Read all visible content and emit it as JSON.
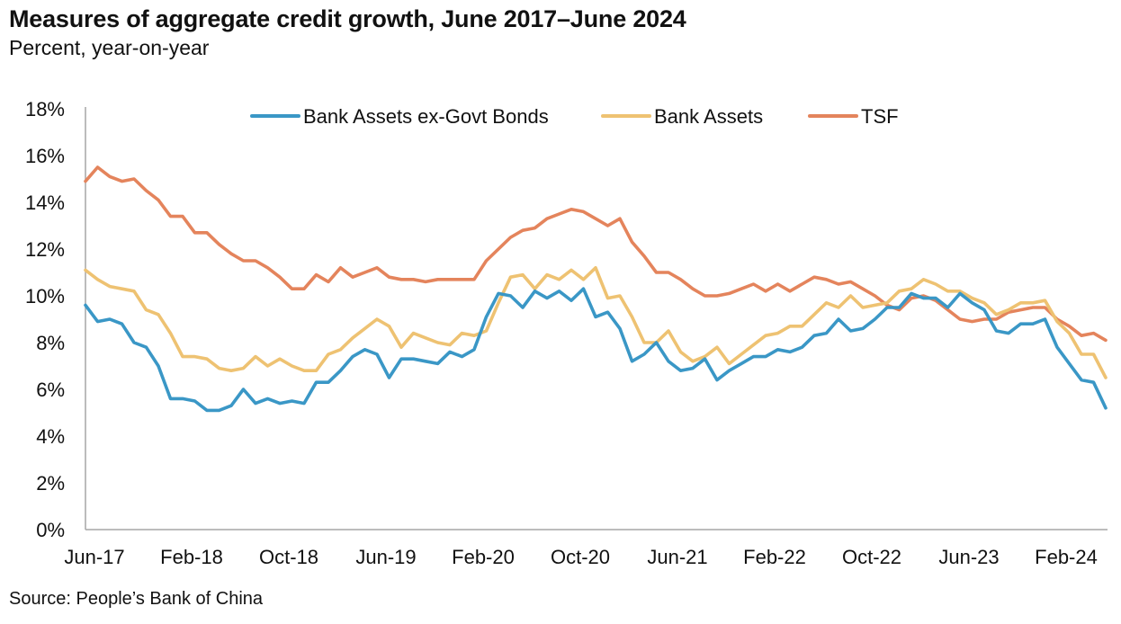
{
  "title": "Measures of aggregate credit growth, June 2017–June 2024",
  "subtitle": "Percent, year-on-year",
  "source": "Source: People’s Bank of China",
  "chart_data": {
    "type": "line",
    "ylim": [
      0,
      18
    ],
    "y_ticks": [
      "0%",
      "2%",
      "4%",
      "6%",
      "8%",
      "10%",
      "12%",
      "14%",
      "16%",
      "18%"
    ],
    "x_tick_labels": [
      "Jun-17",
      "Feb-18",
      "Oct-18",
      "Jun-19",
      "Feb-20",
      "Oct-20",
      "Jun-21",
      "Feb-22",
      "Oct-22",
      "Jun-23",
      "Feb-24"
    ],
    "x_tick_every_months": 8,
    "grid": false,
    "legend_position": "top",
    "series": [
      {
        "name": "Bank Assets ex-Govt Bonds",
        "color": "#3a97c6",
        "values": [
          9.6,
          8.9,
          9.0,
          8.8,
          8.0,
          7.8,
          7.0,
          5.6,
          5.6,
          5.5,
          5.1,
          5.1,
          5.3,
          6.0,
          5.4,
          5.6,
          5.4,
          5.5,
          5.4,
          6.3,
          6.3,
          6.8,
          7.4,
          7.7,
          7.5,
          6.5,
          7.3,
          7.3,
          7.2,
          7.1,
          7.6,
          7.4,
          7.7,
          9.1,
          10.1,
          10.0,
          9.5,
          10.2,
          9.9,
          10.2,
          9.8,
          10.3,
          9.1,
          9.3,
          8.6,
          7.2,
          7.5,
          8.0,
          7.2,
          6.8,
          6.9,
          7.3,
          6.4,
          6.8,
          7.1,
          7.4,
          7.4,
          7.7,
          7.6,
          7.8,
          8.3,
          8.4,
          9.0,
          8.5,
          8.6,
          9.0,
          9.5,
          9.5,
          10.1,
          9.9,
          9.9,
          9.5,
          10.1,
          9.7,
          9.4,
          8.5,
          8.4,
          8.8,
          8.8,
          9.0,
          7.8,
          7.1,
          6.4,
          6.3,
          5.2
        ]
      },
      {
        "name": "Bank Assets",
        "color": "#eec272",
        "values": [
          11.1,
          10.7,
          10.4,
          10.3,
          10.2,
          9.4,
          9.2,
          8.4,
          7.4,
          7.4,
          7.3,
          6.9,
          6.8,
          6.9,
          7.4,
          7.0,
          7.3,
          7.0,
          6.8,
          6.8,
          7.5,
          7.7,
          8.2,
          8.6,
          9.0,
          8.7,
          7.8,
          8.4,
          8.2,
          8.0,
          7.9,
          8.4,
          8.3,
          8.5,
          9.7,
          10.8,
          10.9,
          10.3,
          10.9,
          10.7,
          11.1,
          10.7,
          11.2,
          9.9,
          10.0,
          9.1,
          8.0,
          8.0,
          8.5,
          7.6,
          7.2,
          7.4,
          7.8,
          7.1,
          7.5,
          7.9,
          8.3,
          8.4,
          8.7,
          8.7,
          9.2,
          9.7,
          9.5,
          10.0,
          9.5,
          9.6,
          9.7,
          10.2,
          10.3,
          10.7,
          10.5,
          10.2,
          10.2,
          9.9,
          9.7,
          9.2,
          9.4,
          9.7,
          9.7,
          9.8,
          8.9,
          8.4,
          7.5,
          7.5,
          6.5
        ]
      },
      {
        "name": "TSF",
        "color": "#e4845c",
        "values": [
          14.9,
          15.5,
          15.1,
          14.9,
          15.0,
          14.5,
          14.1,
          13.4,
          13.4,
          12.7,
          12.7,
          12.2,
          11.8,
          11.5,
          11.5,
          11.2,
          10.8,
          10.3,
          10.3,
          10.9,
          10.6,
          11.2,
          10.8,
          11.0,
          11.2,
          10.8,
          10.7,
          10.7,
          10.6,
          10.7,
          10.7,
          10.7,
          10.7,
          11.5,
          12.0,
          12.5,
          12.8,
          12.9,
          13.3,
          13.5,
          13.7,
          13.6,
          13.3,
          13.0,
          13.3,
          12.3,
          11.7,
          11.0,
          11.0,
          10.7,
          10.3,
          10.0,
          10.0,
          10.1,
          10.3,
          10.5,
          10.2,
          10.5,
          10.2,
          10.5,
          10.8,
          10.7,
          10.5,
          10.6,
          10.3,
          10.0,
          9.6,
          9.4,
          9.9,
          10.0,
          9.8,
          9.4,
          9.0,
          8.9,
          9.0,
          9.0,
          9.3,
          9.4,
          9.5,
          9.5,
          9.0,
          8.7,
          8.3,
          8.4,
          8.1
        ]
      }
    ]
  }
}
